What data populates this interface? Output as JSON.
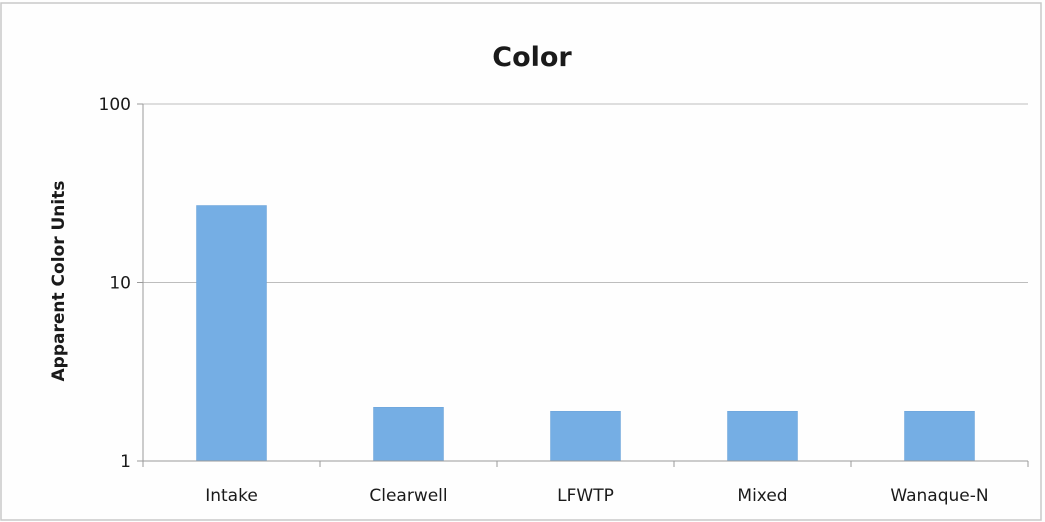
{
  "chart_data": {
    "type": "bar",
    "title": "Color",
    "xlabel": "",
    "ylabel": "Apparent Color Units",
    "y_scale": "log",
    "ylim": [
      1,
      100
    ],
    "y_ticks": [
      1,
      10,
      100
    ],
    "y_tick_labels": [
      "1",
      "10",
      "100"
    ],
    "grid": true,
    "categories": [
      "Intake",
      "Clearwell",
      "LFWTP",
      "Mixed",
      "Wanaque-N"
    ],
    "values": [
      27,
      2,
      1.9,
      1.9,
      1.9
    ],
    "colors": {
      "bar": "#75aee4",
      "bar_edge": "#6aa2d8",
      "grid": "#bdbdbd",
      "axis": "#9a9a9a",
      "frame": "#c9c9c9"
    }
  }
}
